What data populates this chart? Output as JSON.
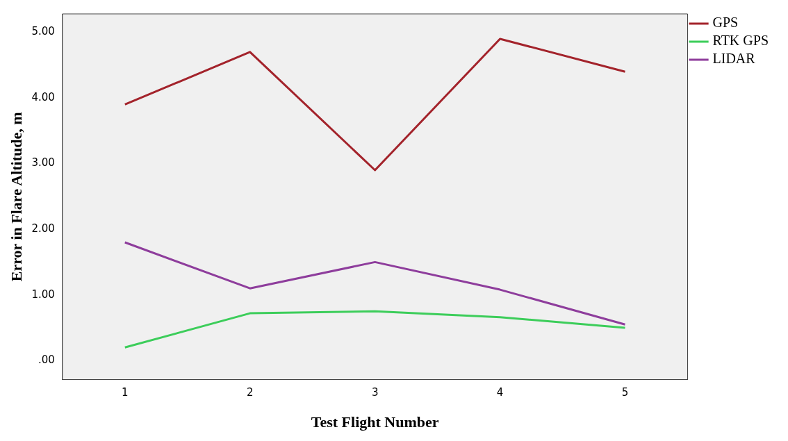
{
  "chart_data": {
    "type": "line",
    "xlabel": "Test Flight Number",
    "ylabel": "Error in Flare Altitude, m",
    "categories": [
      "1",
      "2",
      "3",
      "4",
      "5"
    ],
    "series": [
      {
        "name": "GPS",
        "color": "#a3232b",
        "values": [
          3.9,
          4.7,
          2.9,
          4.9,
          4.4
        ]
      },
      {
        "name": "RTK GPS",
        "color": "#3ccd5a",
        "values": [
          0.2,
          0.72,
          0.75,
          0.66,
          0.5
        ]
      },
      {
        "name": "LIDAR",
        "color": "#8e3d9c",
        "values": [
          1.8,
          1.1,
          1.5,
          1.08,
          0.55
        ]
      }
    ],
    "ylim": [
      -0.29,
      5.28
    ],
    "yticks": [
      {
        "value": 0,
        "label": ".00"
      },
      {
        "value": 1,
        "label": "1.00"
      },
      {
        "value": 2,
        "label": "2.00"
      },
      {
        "value": 3,
        "label": "3.00"
      },
      {
        "value": 4,
        "label": "4.00"
      },
      {
        "value": 5,
        "label": "5.00"
      }
    ],
    "grid": false,
    "legend": "top right",
    "marker": "none",
    "line_style": "solid"
  }
}
